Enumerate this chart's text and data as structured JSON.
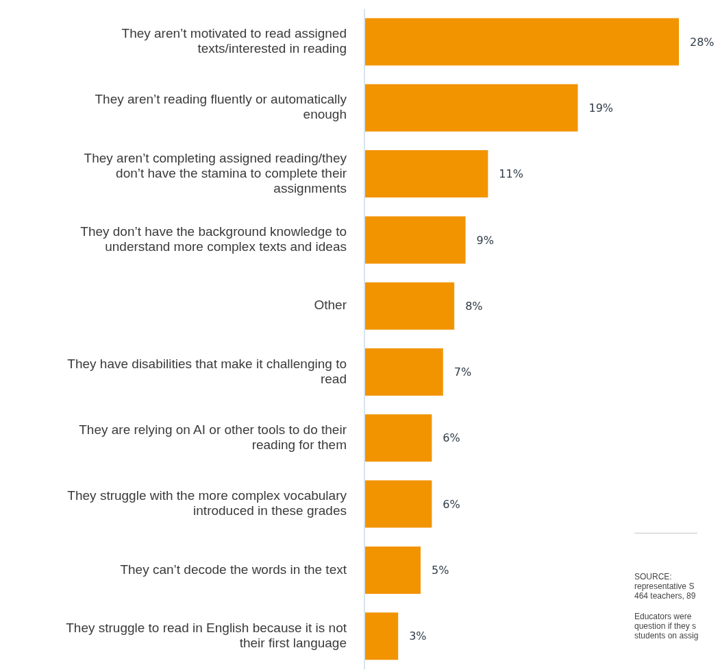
{
  "chart_data": {
    "type": "bar",
    "orientation": "horizontal",
    "categories": [
      "They aren’t motivated to read assigned\ntexts/interested in reading",
      "They aren’t reading fluently or automatically\nenough",
      "They aren’t completing assigned reading/they\ndon’t have the stamina to complete their\nassignments",
      "They don’t have the background knowledge to\nunderstand more complex texts and ideas",
      "Other",
      "They have disabilities that make it challenging to\nread",
      "They are relying on AI or other tools to do their\nreading for them",
      "They struggle with the more complex vocabulary\nintroduced in these grades",
      "They can’t decode the words in the text",
      "They struggle to read in English because it is not\ntheir first language"
    ],
    "values": [
      28,
      19,
      11,
      9,
      8,
      7,
      6,
      6,
      5,
      3
    ],
    "value_labels": [
      "28%",
      "19%",
      "11%",
      "9%",
      "8%",
      "7%",
      "6%",
      "6%",
      "5%",
      "3%"
    ],
    "color": "#f29400",
    "annotations": [
      "SOURCE:\nrepresentative S\n464 teachers, 89",
      "Educators were\nquestion if they s\nstudents on assig"
    ]
  }
}
